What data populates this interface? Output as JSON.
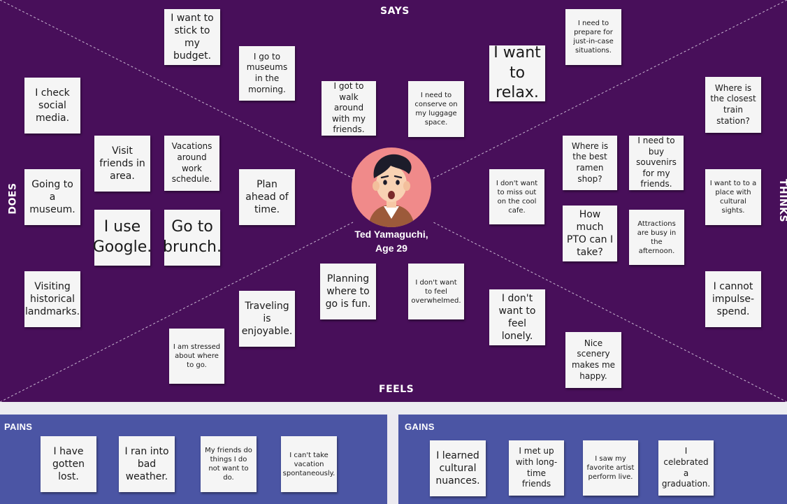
{
  "quadrants": {
    "says": "SAYS",
    "feels": "FEELS",
    "does": "DOES",
    "thinks": "THINKS"
  },
  "persona": {
    "name": "Ted Yamaguchi,",
    "age": "Age 29"
  },
  "notes": {
    "n01": "I want to stick to my budget.",
    "n02": "I go to museums in the morning.",
    "n03": "I got to walk around with my friends.",
    "n04": "I need to conserve on my luggage space.",
    "n05": "I want to relax.",
    "n06": "I need to prepare for just-in-case situations.",
    "n07": "Where is the closest train station?",
    "n08": "Where is the best ramen shop?",
    "n09": "I need to buy souvenirs for my friends.",
    "n10": "I don't want to miss out on the cool cafe.",
    "n11": "I want to to a place with cultural sights.",
    "n12": "How much PTO can I take?",
    "n13": "Attractions are busy in the afternoon.",
    "n14": "I cannot impulse-spend.",
    "n15": "I check social media.",
    "n16": "Visit friends in area.",
    "n17": "Vacations around work schedule.",
    "n18": "Going to a museum.",
    "n19": "Plan ahead of time.",
    "n20": "I use Google.",
    "n21": "Go to brunch.",
    "n22": "Visiting historical landmarks.",
    "n23": "Planning where to go is fun.",
    "n24": "I don't want to feel overwhelmed.",
    "n25": "I don't want to feel lonely.",
    "n26": "Traveling is enjoyable.",
    "n27": "I am stressed about where to go.",
    "n28": "Nice scenery makes me happy."
  },
  "pains": {
    "title": "PAINS",
    "items": [
      "I have gotten lost.",
      "I ran into bad weather.",
      "My friends do things I do not want to do.",
      "I can't take vacation spontaneously."
    ]
  },
  "gains": {
    "title": "GAINS",
    "items": [
      "I learned cultural nuances.",
      "I met up with long-time friends",
      "I saw my favorite artist perform live.",
      "I celebrated a graduation."
    ]
  },
  "colors": {
    "empathy_map_bg": "#480f5a",
    "panel_bg": "#4b55a4",
    "note_bg": "#f5f5f5",
    "avatar_bg": "#f08a8a"
  }
}
